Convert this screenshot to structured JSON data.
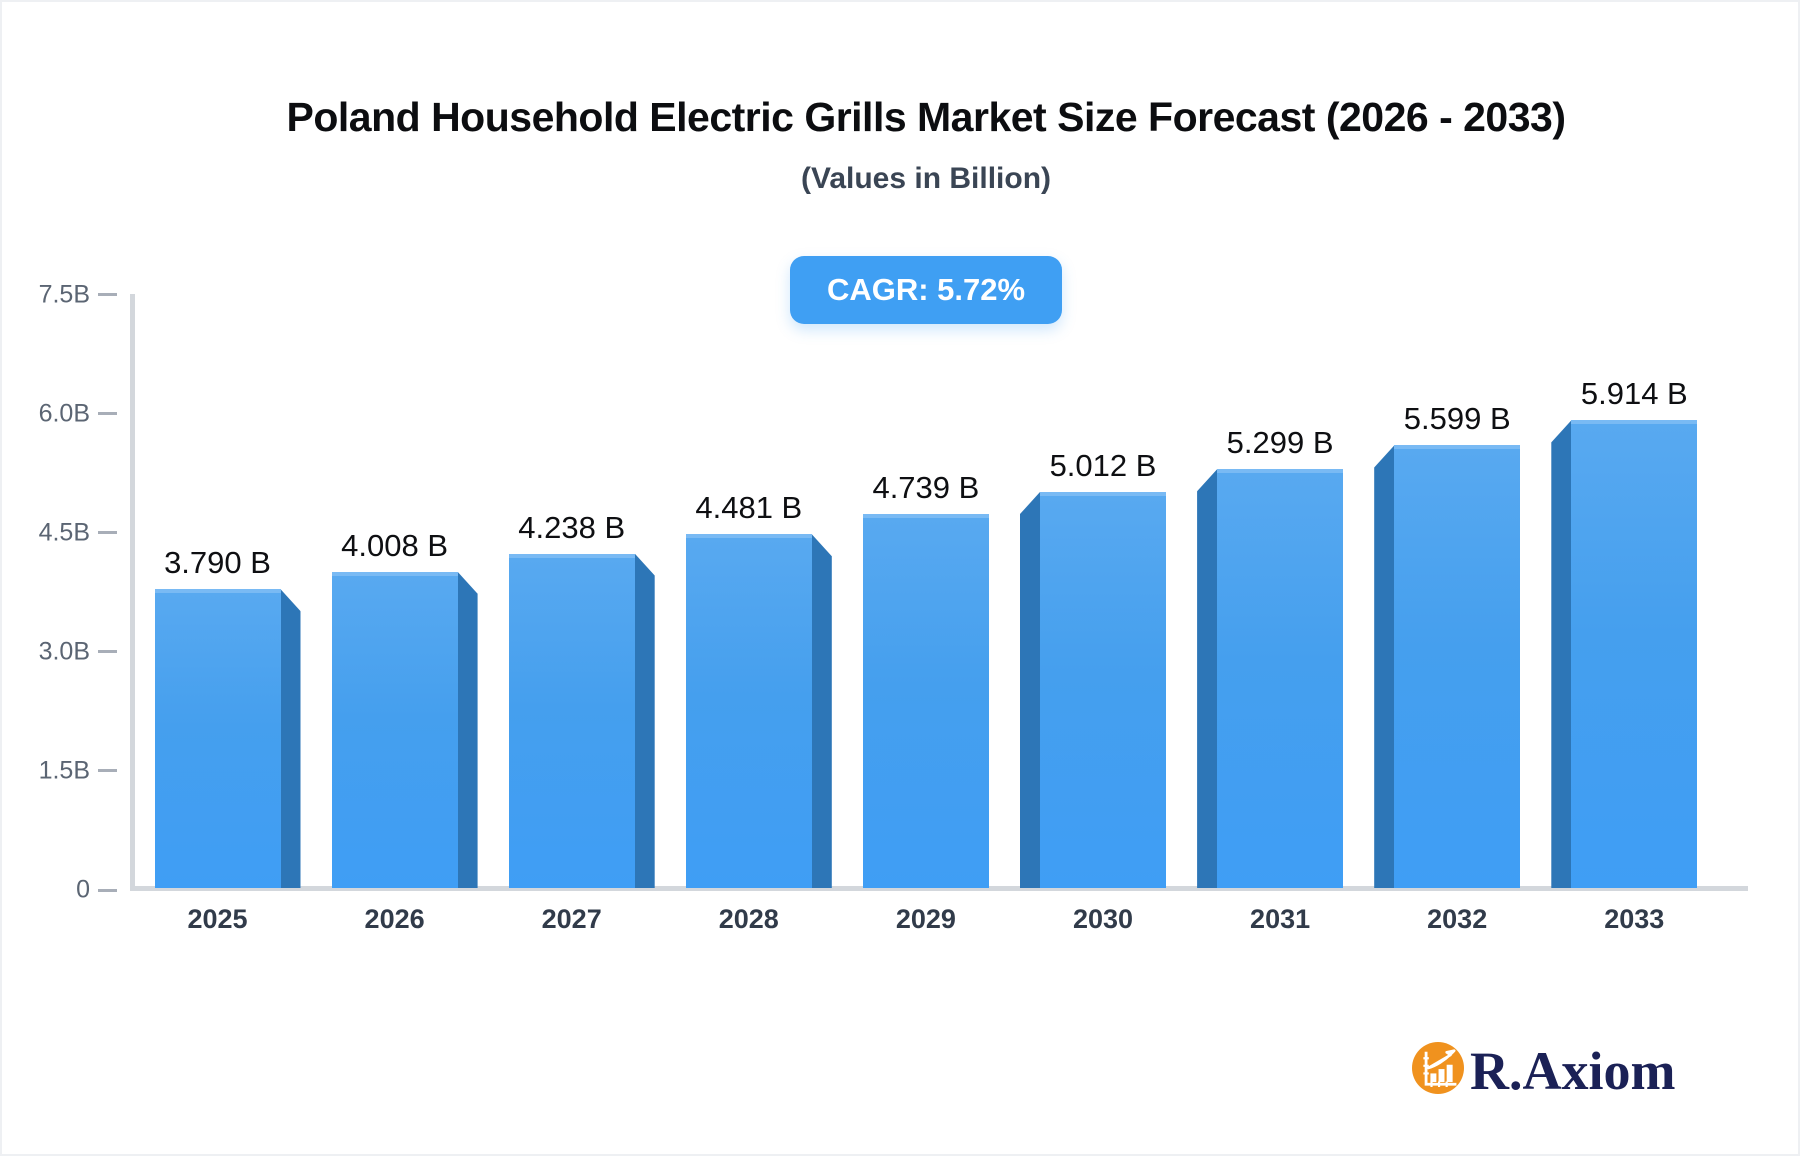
{
  "header": {
    "title": "Poland Household Electric Grills Market Size Forecast (2026 - 2033)",
    "subtitle": "(Values in Billion)"
  },
  "annotation": {
    "cagr_label": "CAGR: 5.72%"
  },
  "footer": {
    "brand_text": "R.Axiom",
    "brand_icon": "bar-chart-growth-icon"
  },
  "colors": {
    "bar_face_top": "#58a9f0",
    "bar_face_bottom": "#3f9ef5",
    "bar_top_highlight": "#79baf4",
    "bar_side": "#2d76b7",
    "badge_bg": "#3f9ff3",
    "axis_line": "#d3d7dc",
    "tick_label": "#5b6573",
    "x_label": "#313b4a",
    "brand_orange": "#f0921e",
    "brand_navy": "#1b2156"
  },
  "chart_data": {
    "type": "bar",
    "title": "Poland Household Electric Grills Market Size Forecast (2026 - 2033)",
    "subtitle": "(Values in Billion)",
    "annotation": "CAGR: 5.72%",
    "categories": [
      "2025",
      "2026",
      "2027",
      "2028",
      "2029",
      "2030",
      "2031",
      "2032",
      "2033"
    ],
    "values": [
      3.79,
      4.008,
      4.238,
      4.481,
      4.739,
      5.012,
      5.299,
      5.599,
      5.914
    ],
    "value_labels": [
      "3.790 B",
      "4.008 B",
      "4.238 B",
      "4.481 B",
      "4.739 B",
      "5.012 B",
      "5.299 B",
      "5.599 B",
      "5.914 B"
    ],
    "y_ticks": [
      {
        "value": 0,
        "label": "0"
      },
      {
        "value": 1.5,
        "label": "1.5B"
      },
      {
        "value": 3.0,
        "label": "3.0B"
      },
      {
        "value": 4.5,
        "label": "4.5B"
      },
      {
        "value": 6.0,
        "label": "6.0B"
      },
      {
        "value": 7.5,
        "label": "7.5B"
      }
    ],
    "ylim": [
      0,
      7.5
    ],
    "xlabel": "",
    "ylabel": "",
    "grid": false,
    "legend_position": "none",
    "bar_style": "3d-beveled, side faces angled toward center bar"
  }
}
